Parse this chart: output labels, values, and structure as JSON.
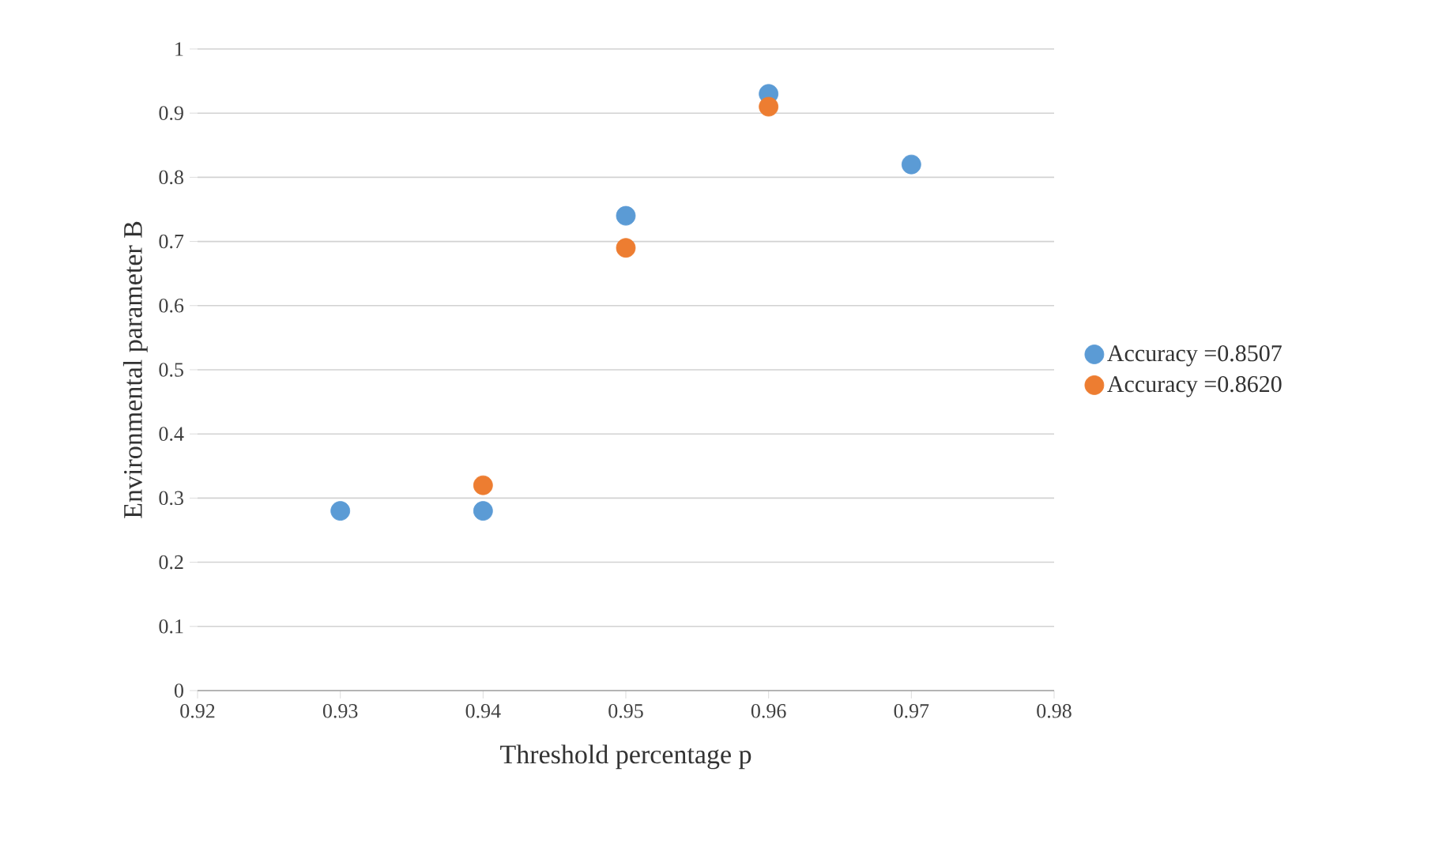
{
  "chart_data": {
    "type": "scatter",
    "xlabel": "Threshold percentage p",
    "ylabel": "Environmental parameter B",
    "series": [
      {
        "name": "Accuracy =0.8507",
        "color": "#5b9bd5",
        "x": [
          0.93,
          0.94,
          0.95,
          0.96,
          0.97
        ],
        "values": [
          0.28,
          0.28,
          0.74,
          0.93,
          0.82
        ]
      },
      {
        "name": "Accuracy =0.8620",
        "color": "#ed7d31",
        "x": [
          0.94,
          0.95,
          0.96
        ],
        "values": [
          0.32,
          0.69,
          0.91
        ]
      }
    ],
    "xlim": [
      0.92,
      0.98
    ],
    "xticks": [
      0.92,
      0.93,
      0.94,
      0.95,
      0.96,
      0.97,
      0.98
    ],
    "ylim": [
      0,
      1
    ],
    "yticks": [
      0,
      0.1,
      0.2,
      0.3,
      0.4,
      0.5,
      0.6,
      0.7,
      0.8,
      0.9,
      1
    ],
    "grid": "y",
    "legend": "right",
    "marker": "circle"
  }
}
